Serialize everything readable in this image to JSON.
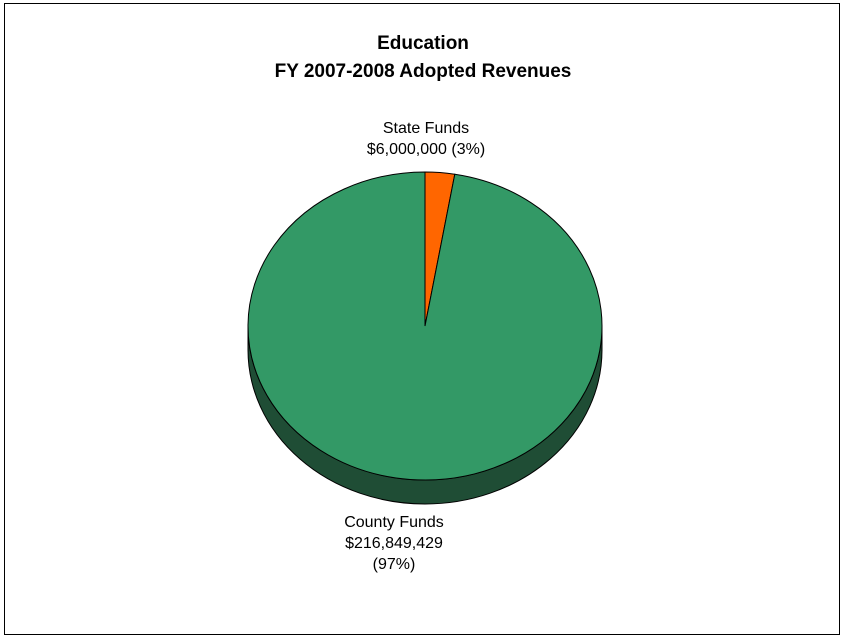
{
  "chart_data": {
    "type": "pie",
    "title": "Education",
    "subtitle": "FY 2007-2008 Adopted Revenues",
    "slices": [
      {
        "name": "State Funds",
        "value": 6000000,
        "value_label": "$6,000,000",
        "percent": 3,
        "percent_label": "(3%)",
        "color": "#FF6600"
      },
      {
        "name": "County Funds",
        "value": 216849429,
        "value_label": "$216,849,429",
        "percent": 97,
        "percent_label": "(97%)",
        "color": "#339966"
      }
    ],
    "side_color": "#1F4D35",
    "style": "3d-pie"
  }
}
